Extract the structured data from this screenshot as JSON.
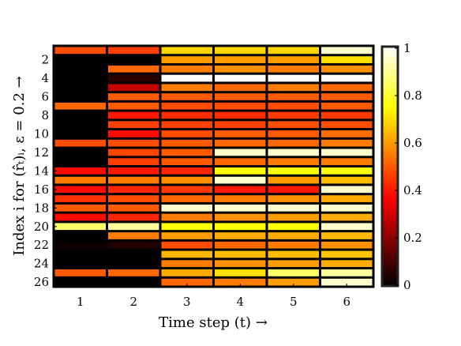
{
  "chart_data": {
    "type": "heatmap",
    "title": "",
    "xlabel": "Time step (t) →",
    "ylabel": "Index i for (r̂ₜ)ᵢ, ε = 0.2 →",
    "x": [
      1,
      2,
      3,
      4,
      5,
      6
    ],
    "x_ticks": [
      "1",
      "2",
      "3",
      "4",
      "5",
      "6"
    ],
    "y_ticks": [
      "2",
      "4",
      "6",
      "8",
      "10",
      "12",
      "14",
      "16",
      "18",
      "20",
      "22",
      "24",
      "26"
    ],
    "y_range": [
      1,
      26
    ],
    "colormap": "hot",
    "colorbar": {
      "range": [
        0,
        1
      ],
      "ticks": [
        "0",
        "0.2",
        "0.4",
        "0.6",
        "0.8",
        "1"
      ]
    },
    "grid": false,
    "rows": [
      [
        0.48,
        0.46,
        0.68,
        0.68,
        0.68,
        0.95
      ],
      [
        0.0,
        0.0,
        0.6,
        0.6,
        0.6,
        0.7
      ],
      [
        0.0,
        0.52,
        0.55,
        0.58,
        0.55,
        0.58
      ],
      [
        0.0,
        0.06,
        1.0,
        1.0,
        1.0,
        1.0
      ],
      [
        0.0,
        0.28,
        0.55,
        0.52,
        0.55,
        0.52
      ],
      [
        0.0,
        0.5,
        0.5,
        0.5,
        0.5,
        0.5
      ],
      [
        0.52,
        0.5,
        0.48,
        0.48,
        0.48,
        0.5
      ],
      [
        0.0,
        0.4,
        0.43,
        0.43,
        0.45,
        0.45
      ],
      [
        0.0,
        0.46,
        0.46,
        0.46,
        0.48,
        0.48
      ],
      [
        0.0,
        0.38,
        0.48,
        0.5,
        0.5,
        0.53
      ],
      [
        0.48,
        0.48,
        0.5,
        0.52,
        0.52,
        0.55
      ],
      [
        0.0,
        0.47,
        0.5,
        0.95,
        0.95,
        0.95
      ],
      [
        0.0,
        0.46,
        0.5,
        0.52,
        0.55,
        0.55
      ],
      [
        0.38,
        0.4,
        0.42,
        0.75,
        0.75,
        0.75
      ],
      [
        0.55,
        0.55,
        0.58,
        0.95,
        0.6,
        0.65
      ],
      [
        0.38,
        0.42,
        0.45,
        0.4,
        0.4,
        0.95
      ],
      [
        0.44,
        0.48,
        0.52,
        0.55,
        0.58,
        0.62
      ],
      [
        0.5,
        0.5,
        0.95,
        0.95,
        0.95,
        0.95
      ],
      [
        0.38,
        0.42,
        0.55,
        0.58,
        0.6,
        0.62
      ],
      [
        0.85,
        0.9,
        0.75,
        0.75,
        0.75,
        0.95
      ],
      [
        0.0,
        0.55,
        0.6,
        0.62,
        0.62,
        0.64
      ],
      [
        0.02,
        0.05,
        0.48,
        0.52,
        0.55,
        0.58
      ],
      [
        0.0,
        0.0,
        0.64,
        0.65,
        0.65,
        0.66
      ],
      [
        0.0,
        0.0,
        0.55,
        0.58,
        0.6,
        0.62
      ],
      [
        0.5,
        0.52,
        0.62,
        0.7,
        0.85,
        0.9
      ],
      [
        0.0,
        0.0,
        0.52,
        0.55,
        0.6,
        0.95
      ]
    ]
  }
}
